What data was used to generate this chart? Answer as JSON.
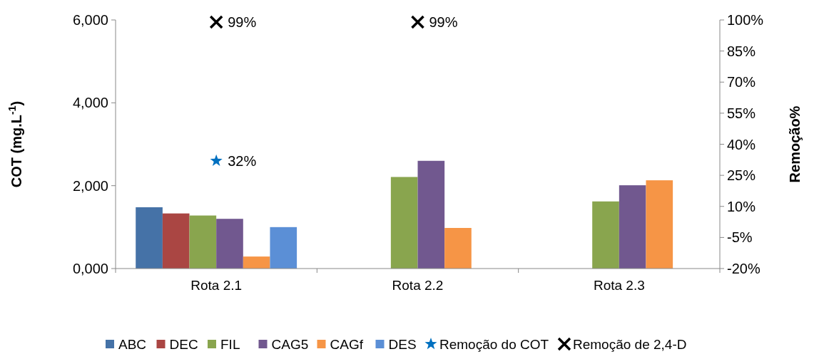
{
  "chart_data": {
    "type": "bar",
    "categories": [
      "Rota 2.1",
      "Rota 2.2",
      "Rota 2.3"
    ],
    "ylabel": "COT (mg.L$^{-1}$)",
    "y2label": "Remoção%",
    "ylim": [
      0,
      6000
    ],
    "yticks": [
      {
        "value": 0,
        "label": "0,000"
      },
      {
        "value": 2000,
        "label": "2,000"
      },
      {
        "value": 4000,
        "label": "4,000"
      },
      {
        "value": 6000,
        "label": "6,000"
      }
    ],
    "y2lim": [
      -20,
      100
    ],
    "y2ticks": [
      {
        "value": -20,
        "label": "-20%"
      },
      {
        "value": -5,
        "label": "-5%"
      },
      {
        "value": 10,
        "label": "10%"
      },
      {
        "value": 25,
        "label": "25%"
      },
      {
        "value": 40,
        "label": "40%"
      },
      {
        "value": 55,
        "label": "55%"
      },
      {
        "value": 70,
        "label": "70%"
      },
      {
        "value": 85,
        "label": "85%"
      },
      {
        "value": 100,
        "label": "100%"
      }
    ],
    "grid": false,
    "legend": "bottom",
    "series": [
      {
        "name": "ABC",
        "color": "#4572a7",
        "values": [
          1480,
          null,
          null
        ]
      },
      {
        "name": "DEC",
        "color": "#aa4643",
        "values": [
          1330,
          null,
          null
        ]
      },
      {
        "name": "FIL",
        "color": "#89a54e",
        "values": [
          1280,
          2210,
          1620
        ]
      },
      {
        "name": "CAG5",
        "color": "#71588f",
        "values": [
          1200,
          2600,
          2010
        ]
      },
      {
        "name": "CAGf",
        "color": "#f69546",
        "values": [
          290,
          980,
          2130
        ]
      },
      {
        "name": "DES",
        "color": "#5b8fd6",
        "values": [
          1000,
          null,
          null
        ]
      },
      {
        "name": "Remoção do COT",
        "type": "scatter",
        "axis": "y2",
        "marker": "star",
        "color": "#0070c0",
        "values": [
          32,
          null,
          null
        ],
        "value_labels": [
          "32%",
          null,
          null
        ]
      },
      {
        "name": "Remoção de 2,4-D",
        "type": "scatter",
        "axis": "y2",
        "marker": "cross",
        "color": "#000000",
        "values": [
          99,
          99,
          null
        ],
        "value_labels": [
          "99%",
          "99%",
          null
        ]
      }
    ]
  }
}
